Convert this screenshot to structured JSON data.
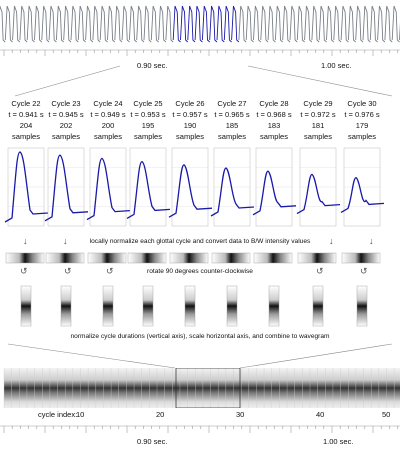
{
  "top_axis": {
    "label_a": "0.90 sec.",
    "label_b": "1.00 sec."
  },
  "cycles": [
    {
      "name": "Cycle 22",
      "time": "t = 0.941 s",
      "samples": "204 samples"
    },
    {
      "name": "Cycle 23",
      "time": "t = 0.945 s",
      "samples": "202 samples"
    },
    {
      "name": "Cycle 24",
      "time": "t = 0.949 s",
      "samples": "200 samples"
    },
    {
      "name": "Cycle 25",
      "time": "t = 0.953 s",
      "samples": "195 samples"
    },
    {
      "name": "Cycle 26",
      "time": "t = 0.957 s",
      "samples": "190 samples"
    },
    {
      "name": "Cycle 27",
      "time": "t = 0.965 s",
      "samples": "185 samples"
    },
    {
      "name": "Cycle 28",
      "time": "t = 0.968 s",
      "samples": "183 samples"
    },
    {
      "name": "Cycle 29",
      "time": "t = 0.972 s",
      "samples": "181 samples"
    },
    {
      "name": "Cycle 30",
      "time": "t = 0.976 s",
      "samples": "179 samples"
    }
  ],
  "steps": {
    "normalize_bw": "locally normalize each glottal cycle and convert data to B/W intensity values",
    "rotate": "rotate 90 degrees counter-clockwise",
    "combine": "normalize cycle durations (vertical axis), scale horizontal axis, and combine to wavegram"
  },
  "cycle_index": {
    "label": "cycle index:",
    "ticks": [
      "10",
      "20",
      "30",
      "40",
      "50"
    ]
  },
  "bottom_axis": {
    "label_a": "0.90 sec.",
    "label_b": "1.00 sec."
  },
  "colors": {
    "waveform_gray": "#7a8088",
    "highlight_blue": "#1a1aa8"
  }
}
